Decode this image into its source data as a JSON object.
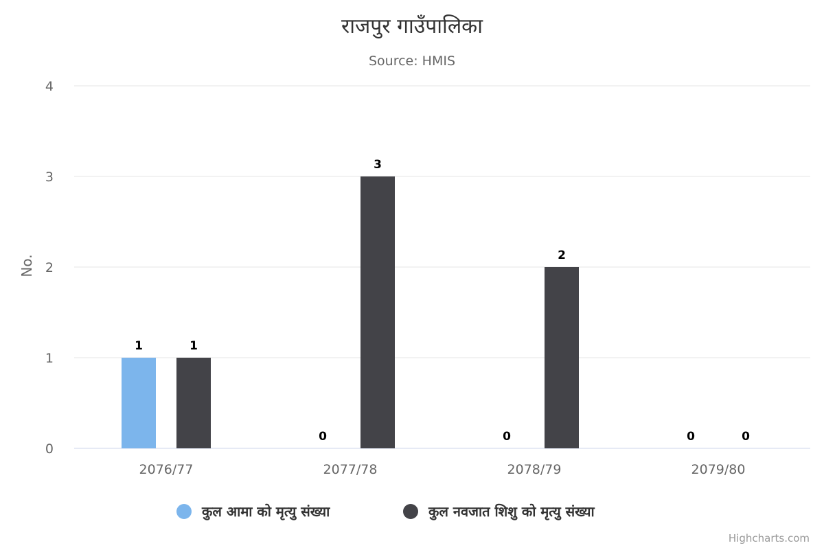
{
  "colors": {
    "series1": "#7cb5ec",
    "series2": "#434348"
  },
  "credits": "Highcharts.com",
  "chart_data": {
    "type": "bar",
    "title": "राजपुर गाउँपालिका",
    "subtitle": "Source: HMIS",
    "ylabel": "No.",
    "xlabel": "",
    "ylim": [
      0,
      4
    ],
    "yticks": [
      0,
      1,
      2,
      3,
      4
    ],
    "grid": true,
    "legend_position": "bottom-center",
    "categories": [
      "2076/77",
      "2077/78",
      "2078/79",
      "2079/80"
    ],
    "series": [
      {
        "name": "कुल आमा को मृत्यु संख्या",
        "color": "#7cb5ec",
        "values": [
          1,
          0,
          0,
          0
        ]
      },
      {
        "name": "कुल नवजात शिशु को मृत्यु संख्या",
        "color": "#434348",
        "values": [
          1,
          3,
          2,
          0
        ]
      }
    ]
  }
}
